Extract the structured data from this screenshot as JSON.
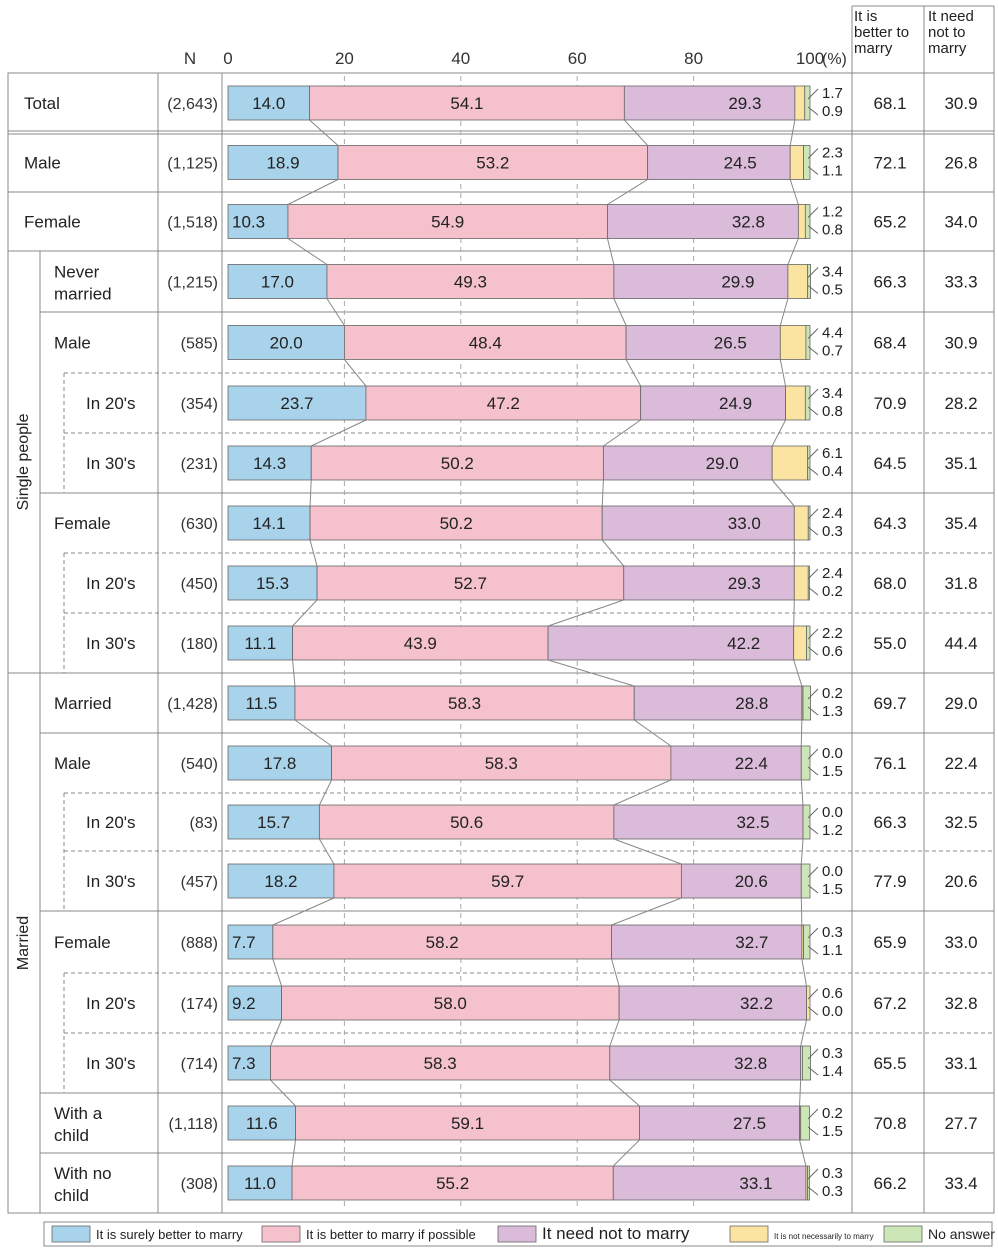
{
  "chart_data": {
    "type": "bar",
    "orientation": "horizontal",
    "stacked": true,
    "xlim": [
      0,
      100
    ],
    "x_ticks": [
      "0",
      "20",
      "40",
      "60",
      "80",
      "100"
    ],
    "x_unit": "(%)",
    "n_header": "N",
    "col_better_header": [
      "It is",
      "better to",
      "marry"
    ],
    "col_need_header": [
      "It need",
      "not to",
      "marry"
    ],
    "group_labels": [
      {
        "label": "Single people",
        "from": 3,
        "to": 9
      },
      {
        "label": "Married",
        "from": 10,
        "to": 18
      }
    ],
    "colors": [
      "#a9d3ea",
      "#f5c1cc",
      "#dabbd9",
      "#fbe4a2",
      "#cde6b8"
    ],
    "legend": [
      "It is surely better to marry",
      "It is better to marry if possible",
      "It need not to marry",
      "It is not necessarily to marry",
      "No answer"
    ],
    "rows": [
      {
        "lines": [
          "Total"
        ],
        "indent": 0,
        "n": "(2,643)",
        "v": [
          "14.0",
          "54.1",
          "29.3",
          "1.7",
          "0.9"
        ],
        "better": "68.1",
        "need": "30.9"
      },
      {
        "lines": [
          "Male"
        ],
        "indent": 0,
        "n": "(1,125)",
        "v": [
          "18.9",
          "53.2",
          "24.5",
          "2.3",
          "1.1"
        ],
        "better": "72.1",
        "need": "26.8"
      },
      {
        "lines": [
          "Female"
        ],
        "indent": 0,
        "n": "(1,518)",
        "v": [
          "10.3",
          "54.9",
          "32.8",
          "1.2",
          "0.8"
        ],
        "better": "65.2",
        "need": "34.0"
      },
      {
        "lines": [
          "Never",
          "married"
        ],
        "indent": 1,
        "n": "(1,215)",
        "v": [
          "17.0",
          "49.3",
          "29.9",
          "3.4",
          "0.5"
        ],
        "better": "66.3",
        "need": "33.3"
      },
      {
        "lines": [
          "Male"
        ],
        "indent": 1,
        "n": "(585)",
        "v": [
          "20.0",
          "48.4",
          "26.5",
          "4.4",
          "0.7"
        ],
        "better": "68.4",
        "need": "30.9"
      },
      {
        "lines": [
          "In 20's"
        ],
        "indent": 2,
        "n": "(354)",
        "v": [
          "23.7",
          "47.2",
          "24.9",
          "3.4",
          "0.8"
        ],
        "better": "70.9",
        "need": "28.2"
      },
      {
        "lines": [
          "In 30's"
        ],
        "indent": 2,
        "n": "(231)",
        "v": [
          "14.3",
          "50.2",
          "29.0",
          "6.1",
          "0.4"
        ],
        "better": "64.5",
        "need": "35.1"
      },
      {
        "lines": [
          "Female"
        ],
        "indent": 1,
        "n": "(630)",
        "v": [
          "14.1",
          "50.2",
          "33.0",
          "2.4",
          "0.3"
        ],
        "better": "64.3",
        "need": "35.4"
      },
      {
        "lines": [
          "In 20's"
        ],
        "indent": 2,
        "n": "(450)",
        "v": [
          "15.3",
          "52.7",
          "29.3",
          "2.4",
          "0.2"
        ],
        "better": "68.0",
        "need": "31.8"
      },
      {
        "lines": [
          "In 30's"
        ],
        "indent": 2,
        "n": "(180)",
        "v": [
          "11.1",
          "43.9",
          "42.2",
          "2.2",
          "0.6"
        ],
        "better": "55.0",
        "need": "44.4"
      },
      {
        "lines": [
          "Married"
        ],
        "indent": 1,
        "n": "(1,428)",
        "v": [
          "11.5",
          "58.3",
          "28.8",
          "0.2",
          "1.3"
        ],
        "better": "69.7",
        "need": "29.0"
      },
      {
        "lines": [
          "Male"
        ],
        "indent": 1,
        "n": "(540)",
        "v": [
          "17.8",
          "58.3",
          "22.4",
          "0.0",
          "1.5"
        ],
        "better": "76.1",
        "need": "22.4"
      },
      {
        "lines": [
          "In 20's"
        ],
        "indent": 2,
        "n": "(83)",
        "v": [
          "15.7",
          "50.6",
          "32.5",
          "0.0",
          "1.2"
        ],
        "better": "66.3",
        "need": "32.5"
      },
      {
        "lines": [
          "In 30's"
        ],
        "indent": 2,
        "n": "(457)",
        "v": [
          "18.2",
          "59.7",
          "20.6",
          "0.0",
          "1.5"
        ],
        "better": "77.9",
        "need": "20.6"
      },
      {
        "lines": [
          "Female"
        ],
        "indent": 1,
        "n": "(888)",
        "v": [
          "7.7",
          "58.2",
          "32.7",
          "0.3",
          "1.1"
        ],
        "better": "65.9",
        "need": "33.0"
      },
      {
        "lines": [
          "In 20's"
        ],
        "indent": 2,
        "n": "(174)",
        "v": [
          "9.2",
          "58.0",
          "32.2",
          "0.6",
          "0.0"
        ],
        "better": "67.2",
        "need": "32.8"
      },
      {
        "lines": [
          "In 30's"
        ],
        "indent": 2,
        "n": "(714)",
        "v": [
          "7.3",
          "58.3",
          "32.8",
          "0.3",
          "1.4"
        ],
        "better": "65.5",
        "need": "33.1"
      },
      {
        "lines": [
          "With a",
          "child"
        ],
        "indent": 1,
        "n": "(1,118)",
        "v": [
          "11.6",
          "59.1",
          "27.5",
          "0.2",
          "1.5"
        ],
        "better": "70.8",
        "need": "27.7"
      },
      {
        "lines": [
          "With no",
          "child"
        ],
        "indent": 1,
        "n": "(308)",
        "v": [
          "11.0",
          "55.2",
          "33.1",
          "0.3",
          "0.3"
        ],
        "better": "66.2",
        "need": "33.4"
      }
    ]
  }
}
